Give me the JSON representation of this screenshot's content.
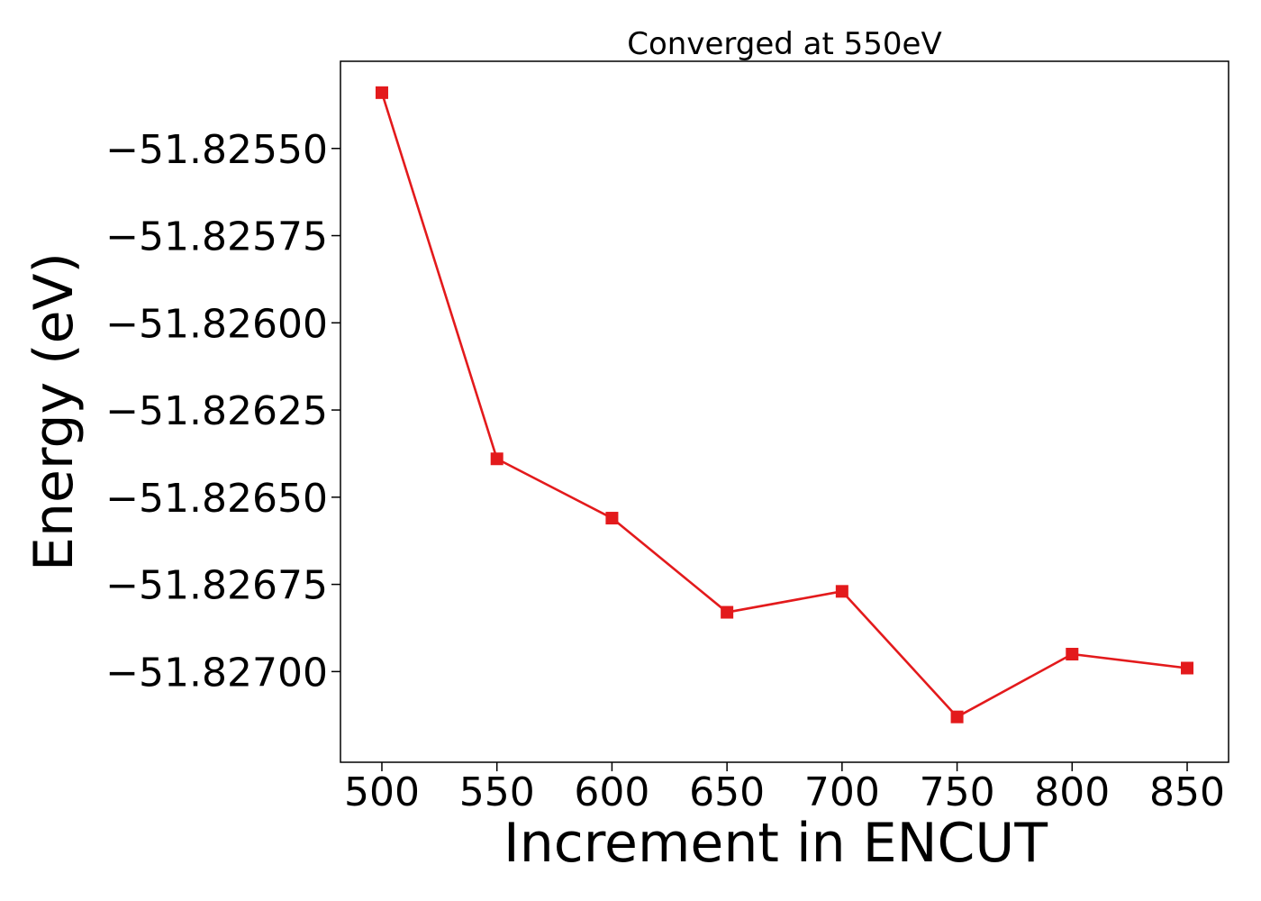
{
  "chart_data": {
    "type": "line",
    "title": "Converged at 550eV",
    "xlabel": "Increment in ENCUT",
    "ylabel": "Energy (eV)",
    "x": [
      500,
      550,
      600,
      650,
      700,
      750,
      800,
      850
    ],
    "series": [
      {
        "values": [
          -51.82534,
          -51.82639,
          -51.82656,
          -51.82683,
          -51.82677,
          -51.82713,
          -51.82695,
          -51.82699
        ]
      }
    ],
    "xlim": [
      482,
      868
    ],
    "ylim": [
      -51.82726,
      -51.82525
    ],
    "xticks": [
      500,
      550,
      600,
      650,
      700,
      750,
      800,
      850
    ],
    "xtick_labels": [
      "500",
      "550",
      "600",
      "650",
      "700",
      "750",
      "800",
      "850"
    ],
    "yticks": [
      -51.8255,
      -51.82575,
      -51.826,
      -51.82625,
      -51.8265,
      -51.82675,
      -51.827
    ],
    "ytick_labels": [
      "−51.82550",
      "−51.82575",
      "−51.82600",
      "−51.82625",
      "−51.82650",
      "−51.82675",
      "−51.82700"
    ],
    "marker": "square",
    "line_color": "#e31a1c",
    "grid": false,
    "legend": false
  }
}
